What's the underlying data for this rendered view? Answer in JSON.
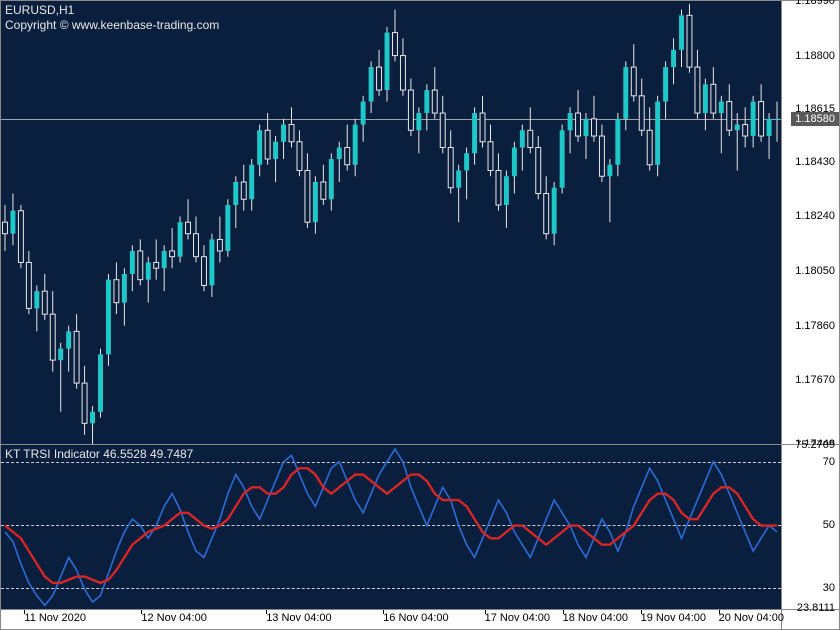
{
  "main": {
    "symbol_timeframe": "EURUSD,H1",
    "copyright": "Copyright © www.keenbase-trading.com",
    "background_color": "#0a1e3d",
    "candle_up_color": "#1ec8c8",
    "candle_down_color": "#0a1e3d",
    "wick_color": "#e8e8e8",
    "ymin": 1.17448,
    "ymax": 1.1899,
    "yticks": [
      1.1899,
      1.188,
      1.18615,
      1.1843,
      1.1824,
      1.1805,
      1.1786,
      1.1767,
      1.17448
    ],
    "current_price": 1.1858,
    "current_price_label": "1.18580",
    "price_line_color": "#a0a0a0",
    "candles": [
      {
        "o": 1.1822,
        "h": 1.1828,
        "l": 1.1812,
        "c": 1.1818
      },
      {
        "o": 1.1818,
        "h": 1.1832,
        "l": 1.1814,
        "c": 1.1826
      },
      {
        "o": 1.1826,
        "h": 1.1828,
        "l": 1.1806,
        "c": 1.1808
      },
      {
        "o": 1.1808,
        "h": 1.1812,
        "l": 1.179,
        "c": 1.1792
      },
      {
        "o": 1.1792,
        "h": 1.18,
        "l": 1.1784,
        "c": 1.1798
      },
      {
        "o": 1.1798,
        "h": 1.1804,
        "l": 1.1788,
        "c": 1.179
      },
      {
        "o": 1.179,
        "h": 1.1798,
        "l": 1.177,
        "c": 1.1774
      },
      {
        "o": 1.1774,
        "h": 1.178,
        "l": 1.1756,
        "c": 1.1778
      },
      {
        "o": 1.1778,
        "h": 1.1786,
        "l": 1.177,
        "c": 1.1784
      },
      {
        "o": 1.1784,
        "h": 1.179,
        "l": 1.1764,
        "c": 1.1766
      },
      {
        "o": 1.1766,
        "h": 1.1772,
        "l": 1.1748,
        "c": 1.1752
      },
      {
        "o": 1.1752,
        "h": 1.1758,
        "l": 1.1744,
        "c": 1.1756
      },
      {
        "o": 1.1756,
        "h": 1.1778,
        "l": 1.1754,
        "c": 1.1776
      },
      {
        "o": 1.1776,
        "h": 1.1804,
        "l": 1.1772,
        "c": 1.1802
      },
      {
        "o": 1.1802,
        "h": 1.1808,
        "l": 1.179,
        "c": 1.1794
      },
      {
        "o": 1.1794,
        "h": 1.1806,
        "l": 1.1786,
        "c": 1.1804
      },
      {
        "o": 1.1804,
        "h": 1.1814,
        "l": 1.1798,
        "c": 1.1812
      },
      {
        "o": 1.1812,
        "h": 1.1816,
        "l": 1.18,
        "c": 1.1802
      },
      {
        "o": 1.1802,
        "h": 1.181,
        "l": 1.1794,
        "c": 1.1808
      },
      {
        "o": 1.1808,
        "h": 1.1816,
        "l": 1.1802,
        "c": 1.1806
      },
      {
        "o": 1.1806,
        "h": 1.1814,
        "l": 1.1798,
        "c": 1.1812
      },
      {
        "o": 1.1812,
        "h": 1.182,
        "l": 1.1806,
        "c": 1.181
      },
      {
        "o": 1.181,
        "h": 1.1824,
        "l": 1.1808,
        "c": 1.1822
      },
      {
        "o": 1.1822,
        "h": 1.183,
        "l": 1.1816,
        "c": 1.1818
      },
      {
        "o": 1.1818,
        "h": 1.1824,
        "l": 1.1808,
        "c": 1.181
      },
      {
        "o": 1.181,
        "h": 1.1814,
        "l": 1.1798,
        "c": 1.18
      },
      {
        "o": 1.18,
        "h": 1.1818,
        "l": 1.1796,
        "c": 1.1816
      },
      {
        "o": 1.1816,
        "h": 1.1824,
        "l": 1.1808,
        "c": 1.1812
      },
      {
        "o": 1.1812,
        "h": 1.183,
        "l": 1.181,
        "c": 1.1828
      },
      {
        "o": 1.1828,
        "h": 1.1838,
        "l": 1.182,
        "c": 1.1836
      },
      {
        "o": 1.1836,
        "h": 1.1842,
        "l": 1.1826,
        "c": 1.183
      },
      {
        "o": 1.183,
        "h": 1.1844,
        "l": 1.1826,
        "c": 1.1842
      },
      {
        "o": 1.1842,
        "h": 1.1856,
        "l": 1.1838,
        "c": 1.1854
      },
      {
        "o": 1.1854,
        "h": 1.186,
        "l": 1.1842,
        "c": 1.1844
      },
      {
        "o": 1.1844,
        "h": 1.1852,
        "l": 1.1836,
        "c": 1.185
      },
      {
        "o": 1.185,
        "h": 1.1858,
        "l": 1.1844,
        "c": 1.1856
      },
      {
        "o": 1.1856,
        "h": 1.1862,
        "l": 1.1848,
        "c": 1.185
      },
      {
        "o": 1.185,
        "h": 1.1854,
        "l": 1.1838,
        "c": 1.184
      },
      {
        "o": 1.184,
        "h": 1.1846,
        "l": 1.182,
        "c": 1.1822
      },
      {
        "o": 1.1822,
        "h": 1.1838,
        "l": 1.1818,
        "c": 1.1836
      },
      {
        "o": 1.1836,
        "h": 1.1842,
        "l": 1.1828,
        "c": 1.183
      },
      {
        "o": 1.183,
        "h": 1.1846,
        "l": 1.1826,
        "c": 1.1844
      },
      {
        "o": 1.1844,
        "h": 1.185,
        "l": 1.1836,
        "c": 1.1848
      },
      {
        "o": 1.1848,
        "h": 1.1856,
        "l": 1.184,
        "c": 1.1842
      },
      {
        "o": 1.1842,
        "h": 1.1858,
        "l": 1.1838,
        "c": 1.1856
      },
      {
        "o": 1.1856,
        "h": 1.1866,
        "l": 1.185,
        "c": 1.1864
      },
      {
        "o": 1.1864,
        "h": 1.1878,
        "l": 1.186,
        "c": 1.1876
      },
      {
        "o": 1.1876,
        "h": 1.1882,
        "l": 1.1866,
        "c": 1.1868
      },
      {
        "o": 1.1868,
        "h": 1.189,
        "l": 1.1864,
        "c": 1.1888
      },
      {
        "o": 1.1888,
        "h": 1.1896,
        "l": 1.1878,
        "c": 1.188
      },
      {
        "o": 1.188,
        "h": 1.1886,
        "l": 1.1866,
        "c": 1.1868
      },
      {
        "o": 1.1868,
        "h": 1.1872,
        "l": 1.1852,
        "c": 1.1854
      },
      {
        "o": 1.1854,
        "h": 1.1862,
        "l": 1.1846,
        "c": 1.186
      },
      {
        "o": 1.186,
        "h": 1.187,
        "l": 1.1854,
        "c": 1.1868
      },
      {
        "o": 1.1868,
        "h": 1.1876,
        "l": 1.1858,
        "c": 1.186
      },
      {
        "o": 1.186,
        "h": 1.1866,
        "l": 1.1846,
        "c": 1.1848
      },
      {
        "o": 1.1848,
        "h": 1.1854,
        "l": 1.1832,
        "c": 1.1834
      },
      {
        "o": 1.1834,
        "h": 1.1842,
        "l": 1.1822,
        "c": 1.184
      },
      {
        "o": 1.184,
        "h": 1.1848,
        "l": 1.183,
        "c": 1.1846
      },
      {
        "o": 1.1846,
        "h": 1.1862,
        "l": 1.1842,
        "c": 1.186
      },
      {
        "o": 1.186,
        "h": 1.1866,
        "l": 1.1848,
        "c": 1.185
      },
      {
        "o": 1.185,
        "h": 1.1856,
        "l": 1.1838,
        "c": 1.184
      },
      {
        "o": 1.184,
        "h": 1.1846,
        "l": 1.1826,
        "c": 1.1828
      },
      {
        "o": 1.1828,
        "h": 1.184,
        "l": 1.182,
        "c": 1.1838
      },
      {
        "o": 1.1838,
        "h": 1.185,
        "l": 1.1832,
        "c": 1.1848
      },
      {
        "o": 1.1848,
        "h": 1.1856,
        "l": 1.184,
        "c": 1.1854
      },
      {
        "o": 1.1854,
        "h": 1.1862,
        "l": 1.1846,
        "c": 1.1848
      },
      {
        "o": 1.1848,
        "h": 1.1852,
        "l": 1.183,
        "c": 1.1832
      },
      {
        "o": 1.1832,
        "h": 1.1838,
        "l": 1.1816,
        "c": 1.1818
      },
      {
        "o": 1.1818,
        "h": 1.1836,
        "l": 1.1814,
        "c": 1.1834
      },
      {
        "o": 1.1834,
        "h": 1.1856,
        "l": 1.1832,
        "c": 1.1854
      },
      {
        "o": 1.1854,
        "h": 1.1862,
        "l": 1.1846,
        "c": 1.186
      },
      {
        "o": 1.186,
        "h": 1.1868,
        "l": 1.185,
        "c": 1.1852
      },
      {
        "o": 1.1852,
        "h": 1.186,
        "l": 1.1844,
        "c": 1.1858
      },
      {
        "o": 1.1858,
        "h": 1.1866,
        "l": 1.185,
        "c": 1.1852
      },
      {
        "o": 1.1852,
        "h": 1.1856,
        "l": 1.1836,
        "c": 1.1838
      },
      {
        "o": 1.1838,
        "h": 1.1844,
        "l": 1.1822,
        "c": 1.1842
      },
      {
        "o": 1.1842,
        "h": 1.186,
        "l": 1.1838,
        "c": 1.1858
      },
      {
        "o": 1.1858,
        "h": 1.1878,
        "l": 1.1854,
        "c": 1.1876
      },
      {
        "o": 1.1876,
        "h": 1.1884,
        "l": 1.1864,
        "c": 1.1866
      },
      {
        "o": 1.1866,
        "h": 1.1872,
        "l": 1.1852,
        "c": 1.1854
      },
      {
        "o": 1.1854,
        "h": 1.1862,
        "l": 1.184,
        "c": 1.1842
      },
      {
        "o": 1.1842,
        "h": 1.1866,
        "l": 1.1838,
        "c": 1.1864
      },
      {
        "o": 1.1864,
        "h": 1.1878,
        "l": 1.1858,
        "c": 1.1876
      },
      {
        "o": 1.1876,
        "h": 1.1886,
        "l": 1.187,
        "c": 1.1882
      },
      {
        "o": 1.1882,
        "h": 1.1896,
        "l": 1.1876,
        "c": 1.1894
      },
      {
        "o": 1.1894,
        "h": 1.1898,
        "l": 1.1874,
        "c": 1.1876
      },
      {
        "o": 1.1876,
        "h": 1.1882,
        "l": 1.1858,
        "c": 1.186
      },
      {
        "o": 1.186,
        "h": 1.1872,
        "l": 1.1854,
        "c": 1.187
      },
      {
        "o": 1.187,
        "h": 1.1876,
        "l": 1.1858,
        "c": 1.186
      },
      {
        "o": 1.186,
        "h": 1.1866,
        "l": 1.1846,
        "c": 1.1864
      },
      {
        "o": 1.1864,
        "h": 1.187,
        "l": 1.1852,
        "c": 1.1854
      },
      {
        "o": 1.1854,
        "h": 1.186,
        "l": 1.184,
        "c": 1.1856
      },
      {
        "o": 1.1856,
        "h": 1.1862,
        "l": 1.1848,
        "c": 1.1852
      },
      {
        "o": 1.1852,
        "h": 1.1866,
        "l": 1.1848,
        "c": 1.1864
      },
      {
        "o": 1.1864,
        "h": 1.187,
        "l": 1.185,
        "c": 1.1852
      },
      {
        "o": 1.1852,
        "h": 1.186,
        "l": 1.1844,
        "c": 1.1858
      },
      {
        "o": 1.1858,
        "h": 1.1864,
        "l": 1.185,
        "c": 1.1858
      }
    ]
  },
  "indicator": {
    "label": "KT TRSI Indicator 46.5528 49.7487",
    "ymin": 23.8111,
    "ymax": 75.2709,
    "yticks_right": [
      {
        "v": 75.2709,
        "label": "75.2709"
      },
      {
        "v": 70,
        "label": "70"
      },
      {
        "v": 50,
        "label": "50"
      },
      {
        "v": 30,
        "label": "30"
      },
      {
        "v": 23.8111,
        "label": "23.8111"
      }
    ],
    "level_lines": [
      70,
      50,
      30
    ],
    "level_line_color": "#d0d0d0",
    "blue_color": "#2b6cd6",
    "red_color": "#d62626",
    "blue_line": [
      48,
      45,
      38,
      32,
      28,
      25,
      28,
      34,
      40,
      36,
      30,
      26,
      28,
      35,
      42,
      48,
      52,
      50,
      46,
      50,
      56,
      60,
      55,
      48,
      42,
      40,
      46,
      52,
      60,
      66,
      62,
      56,
      52,
      58,
      64,
      70,
      72,
      66,
      60,
      56,
      62,
      68,
      70,
      64,
      58,
      54,
      60,
      66,
      70,
      74,
      70,
      62,
      56,
      50,
      56,
      62,
      58,
      50,
      44,
      40,
      46,
      52,
      58,
      54,
      48,
      44,
      40,
      46,
      52,
      58,
      54,
      50,
      44,
      40,
      46,
      52,
      48,
      42,
      48,
      56,
      62,
      68,
      64,
      58,
      52,
      46,
      52,
      58,
      64,
      70,
      66,
      60,
      54,
      48,
      42,
      46,
      50,
      48
    ],
    "red_line": [
      50,
      48,
      46,
      42,
      38,
      34,
      32,
      32,
      33,
      34,
      34,
      33,
      32,
      33,
      36,
      40,
      44,
      46,
      48,
      49,
      50,
      52,
      54,
      54,
      52,
      50,
      49,
      50,
      52,
      56,
      60,
      62,
      62,
      60,
      60,
      62,
      66,
      68,
      68,
      66,
      62,
      60,
      62,
      64,
      66,
      66,
      64,
      62,
      60,
      62,
      64,
      66,
      66,
      64,
      60,
      58,
      58,
      58,
      56,
      52,
      48,
      46,
      46,
      48,
      50,
      50,
      48,
      46,
      44,
      46,
      48,
      50,
      50,
      48,
      46,
      44,
      44,
      46,
      48,
      50,
      54,
      58,
      60,
      60,
      58,
      54,
      52,
      52,
      56,
      60,
      62,
      62,
      60,
      56,
      52,
      50,
      50,
      50
    ]
  },
  "time_axis": {
    "ticks": [
      {
        "pos": 0.03,
        "label": "11 Nov 2020"
      },
      {
        "pos": 0.18,
        "label": "12 Nov 04:00"
      },
      {
        "pos": 0.34,
        "label": "13 Nov 04:00"
      },
      {
        "pos": 0.49,
        "label": "16 Nov 04:00"
      },
      {
        "pos": 0.62,
        "label": "17 Nov 04:00"
      },
      {
        "pos": 0.72,
        "label": "18 Nov 04:00"
      },
      {
        "pos": 0.82,
        "label": "19 Nov 04:00"
      },
      {
        "pos": 0.92,
        "label": "20 Nov 04:00"
      }
    ]
  }
}
